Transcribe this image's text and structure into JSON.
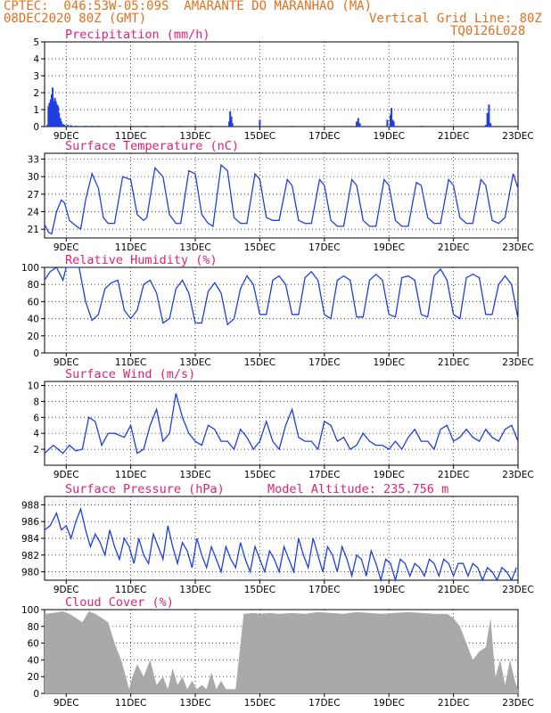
{
  "header": {
    "line1_left": "CPTEC:  046:53W-05:09S  AMARANTE DO MARANHAO (MA)",
    "line2_left": "08DEC2020 80Z (GMT)",
    "line2_right": "Vertical Grid Line: 80Z",
    "line3_right": "TQ0126L028"
  },
  "colors": {
    "series": "#1f3fe0",
    "title": "#e0207a",
    "header": "#e07020",
    "cloud": "#a9a9a9"
  },
  "x_ticks": [
    "9DEC",
    "11DEC",
    "13DEC",
    "15DEC",
    "17DEC",
    "19DEC",
    "21DEC",
    "23DEC"
  ],
  "chart_data": [
    {
      "type": "bar",
      "title": "Precipitation (mm/h)",
      "ylim": [
        0,
        5
      ],
      "yticks": [
        0,
        1,
        2,
        3,
        4,
        5
      ],
      "x_unit": "day of December (UTC)",
      "xlim": [
        8.33,
        23.0
      ],
      "x": [
        8.42,
        8.45,
        8.48,
        8.52,
        8.55,
        8.58,
        8.62,
        8.65,
        8.68,
        8.72,
        8.75,
        8.78,
        8.82,
        8.85,
        8.9,
        8.95,
        9.05,
        9.15,
        9.3,
        9.6,
        9.8,
        10.0,
        10.5,
        11.0,
        11.5,
        12.0,
        12.5,
        13.0,
        13.5,
        14.05,
        14.08,
        14.12,
        14.15,
        15.0,
        16.0,
        18.0,
        18.05,
        18.1,
        18.95,
        19.05,
        19.08,
        19.12,
        19.15,
        20.0,
        22.0,
        22.05,
        22.1,
        22.15
      ],
      "values": [
        0.1,
        1.2,
        1.4,
        1.6,
        1.9,
        2.3,
        1.5,
        1.7,
        1.5,
        1.3,
        1.2,
        0.8,
        0.5,
        0.3,
        0.15,
        0.1,
        0.1,
        0.08,
        0.05,
        0.05,
        0.05,
        0.05,
        0.05,
        0.05,
        0.05,
        0.05,
        0.05,
        0.05,
        0.05,
        0.3,
        0.9,
        0.6,
        0.2,
        0.4,
        0.05,
        0.3,
        0.5,
        0.2,
        0.4,
        0.7,
        1.1,
        0.4,
        0.3,
        0.05,
        0.1,
        0.8,
        1.3,
        0.2
      ]
    },
    {
      "type": "line",
      "title": "Surface Temperature (nC)",
      "ylim": [
        19.5,
        34
      ],
      "yticks": [
        21,
        24,
        27,
        30,
        33
      ],
      "x_unit": "day of December (UTC)",
      "xlim": [
        8.33,
        23.0
      ],
      "x": [
        8.33,
        8.45,
        8.55,
        8.7,
        8.85,
        8.95,
        9.1,
        9.25,
        9.45,
        9.6,
        9.8,
        10.0,
        10.15,
        10.3,
        10.5,
        10.75,
        11.0,
        11.2,
        11.4,
        11.5,
        11.75,
        12.0,
        12.2,
        12.4,
        12.55,
        12.8,
        13.0,
        13.2,
        13.4,
        13.55,
        13.8,
        14.0,
        14.2,
        14.4,
        14.6,
        14.85,
        15.0,
        15.2,
        15.4,
        15.6,
        15.85,
        16.0,
        16.2,
        16.4,
        16.6,
        16.85,
        17.0,
        17.2,
        17.4,
        17.6,
        17.85,
        18.0,
        18.2,
        18.4,
        18.6,
        18.85,
        19.0,
        19.2,
        19.4,
        19.6,
        19.85,
        20.0,
        20.2,
        20.4,
        20.6,
        20.85,
        21.0,
        21.2,
        21.4,
        21.6,
        21.85,
        22.0,
        22.2,
        22.4,
        22.6,
        22.85,
        23.0
      ],
      "values": [
        21.8,
        20.5,
        20.2,
        24,
        26,
        25.5,
        22.5,
        21.8,
        21,
        26,
        30.5,
        28,
        23,
        22,
        22,
        30,
        29.5,
        23.5,
        22.5,
        23,
        31.5,
        30,
        23.5,
        22,
        22,
        31,
        30.5,
        23.5,
        22,
        21.5,
        32,
        31,
        23,
        22,
        22,
        30.5,
        29.5,
        23,
        22.5,
        22.5,
        29.5,
        28.5,
        22.5,
        22,
        22,
        29.5,
        28.5,
        22.5,
        21.5,
        21.5,
        29.5,
        28.5,
        22.5,
        21.5,
        21.5,
        29.5,
        28.5,
        22.5,
        21.5,
        21.5,
        29,
        28.5,
        23,
        22,
        22,
        29.5,
        28.5,
        23,
        22,
        22,
        29.5,
        28.5,
        22.5,
        22,
        23,
        30.5,
        28
      ]
    },
    {
      "type": "line",
      "title": "Relative Humidity (%)",
      "ylim": [
        0,
        100
      ],
      "yticks": [
        0,
        20,
        40,
        60,
        80,
        100
      ],
      "x_unit": "day of December (UTC)",
      "xlim": [
        8.33,
        23.0
      ],
      "x": [
        8.33,
        8.5,
        8.7,
        8.9,
        9.0,
        9.2,
        9.4,
        9.6,
        9.8,
        10.0,
        10.2,
        10.4,
        10.6,
        10.8,
        11.0,
        11.2,
        11.4,
        11.6,
        11.8,
        12.0,
        12.2,
        12.4,
        12.6,
        12.8,
        13.0,
        13.2,
        13.4,
        13.6,
        13.8,
        14.0,
        14.2,
        14.4,
        14.6,
        14.8,
        15.0,
        15.2,
        15.4,
        15.6,
        15.8,
        16.0,
        16.2,
        16.4,
        16.6,
        16.8,
        17.0,
        17.2,
        17.4,
        17.6,
        17.8,
        18.0,
        18.2,
        18.4,
        18.6,
        18.8,
        19.0,
        19.2,
        19.4,
        19.6,
        19.8,
        20.0,
        20.2,
        20.4,
        20.6,
        20.8,
        21.0,
        21.2,
        21.4,
        21.6,
        21.8,
        22.0,
        22.2,
        22.4,
        22.6,
        22.8,
        23.0
      ],
      "values": [
        85,
        95,
        100,
        85,
        100,
        100,
        100,
        60,
        38,
        45,
        75,
        82,
        85,
        50,
        40,
        50,
        80,
        85,
        70,
        35,
        40,
        75,
        85,
        70,
        35,
        35,
        72,
        82,
        70,
        33,
        40,
        75,
        90,
        80,
        45,
        45,
        85,
        90,
        80,
        45,
        45,
        88,
        95,
        85,
        45,
        40,
        85,
        90,
        85,
        42,
        42,
        85,
        92,
        85,
        45,
        42,
        88,
        90,
        85,
        45,
        42,
        90,
        98,
        85,
        45,
        40,
        88,
        92,
        88,
        45,
        45,
        80,
        90,
        80,
        40
      ]
    },
    {
      "type": "line",
      "title": "Surface Wind (m/s)",
      "ylim": [
        0,
        10.5
      ],
      "yticks": [
        2,
        4,
        6,
        8,
        10
      ],
      "x_unit": "day of December (UTC)",
      "xlim": [
        8.33,
        23.0
      ],
      "x": [
        8.33,
        8.6,
        8.9,
        9.1,
        9.3,
        9.5,
        9.7,
        9.9,
        10.1,
        10.3,
        10.5,
        10.8,
        11.0,
        11.2,
        11.4,
        11.6,
        11.8,
        12.0,
        12.2,
        12.4,
        12.6,
        12.8,
        13.0,
        13.2,
        13.4,
        13.6,
        13.8,
        14.0,
        14.2,
        14.4,
        14.6,
        14.8,
        15.0,
        15.2,
        15.4,
        15.6,
        15.8,
        16.0,
        16.2,
        16.4,
        16.6,
        16.8,
        17.0,
        17.2,
        17.4,
        17.6,
        17.8,
        18.0,
        18.2,
        18.4,
        18.6,
        18.8,
        19.0,
        19.2,
        19.4,
        19.6,
        19.8,
        20.0,
        20.2,
        20.4,
        20.6,
        20.8,
        21.0,
        21.2,
        21.4,
        21.6,
        21.8,
        22.0,
        22.2,
        22.4,
        22.6,
        22.8,
        23.0
      ],
      "values": [
        1.5,
        2.5,
        1.5,
        2.5,
        1.8,
        2.0,
        6.0,
        5.5,
        2.5,
        4.0,
        4.0,
        3.5,
        5.0,
        1.5,
        2.0,
        5.0,
        7.0,
        3.0,
        4.0,
        9.0,
        6.0,
        4.0,
        3.0,
        2.5,
        5.0,
        4.5,
        3.0,
        3.0,
        2.0,
        4.5,
        3.5,
        2.0,
        3.0,
        5.5,
        3.0,
        2.0,
        5.0,
        7.0,
        3.5,
        3.0,
        3.0,
        2.0,
        5.5,
        5.0,
        3.0,
        3.5,
        2.0,
        2.5,
        4.0,
        3.0,
        2.5,
        2.5,
        2.0,
        3.0,
        2.0,
        3.5,
        4.5,
        3.0,
        3.0,
        2.0,
        4.5,
        5.0,
        3.0,
        3.5,
        4.5,
        3.5,
        3.0,
        4.5,
        3.5,
        3.0,
        4.5,
        5.0,
        3.0
      ]
    },
    {
      "type": "line",
      "title": "Surface Pressure (hPa)",
      "annotation": "Model Altitude: 235.756 m",
      "ylim": [
        979.0,
        989.0
      ],
      "yticks": [
        980,
        982,
        984,
        986,
        988
      ],
      "x_unit": "day of December (UTC)",
      "xlim": [
        8.33,
        23.0
      ],
      "x": [
        8.33,
        8.5,
        8.7,
        8.85,
        9.0,
        9.15,
        9.3,
        9.45,
        9.6,
        9.75,
        9.9,
        10.05,
        10.2,
        10.35,
        10.5,
        10.65,
        10.8,
        10.95,
        11.1,
        11.25,
        11.4,
        11.55,
        11.7,
        11.85,
        12.0,
        12.15,
        12.3,
        12.45,
        12.6,
        12.75,
        12.9,
        13.05,
        13.2,
        13.35,
        13.5,
        13.65,
        13.8,
        13.95,
        14.1,
        14.25,
        14.4,
        14.55,
        14.7,
        14.85,
        15.0,
        15.15,
        15.3,
        15.45,
        15.6,
        15.75,
        15.9,
        16.05,
        16.2,
        16.35,
        16.5,
        16.65,
        16.8,
        16.95,
        17.1,
        17.25,
        17.4,
        17.55,
        17.7,
        17.85,
        18.0,
        18.15,
        18.3,
        18.45,
        18.6,
        18.75,
        18.9,
        19.05,
        19.2,
        19.35,
        19.5,
        19.65,
        19.8,
        19.95,
        20.1,
        20.25,
        20.4,
        20.55,
        20.7,
        20.85,
        21.0,
        21.15,
        21.3,
        21.45,
        21.6,
        21.75,
        21.9,
        22.05,
        22.2,
        22.35,
        22.5,
        22.65,
        22.8,
        22.95
      ],
      "values": [
        985,
        985.5,
        987,
        985,
        985.5,
        984,
        986,
        987.5,
        985,
        983,
        984.5,
        983.5,
        982,
        985,
        983,
        981.5,
        984,
        983,
        981,
        984,
        982,
        981,
        984.5,
        983,
        981.5,
        985.5,
        983,
        981,
        983.5,
        982.5,
        980.5,
        984,
        982,
        980.5,
        983,
        981.5,
        980,
        983,
        981.5,
        980.5,
        983.5,
        981.5,
        980,
        983,
        981.5,
        980,
        982.5,
        981.5,
        980,
        983,
        981.5,
        980,
        984,
        982,
        980.5,
        984,
        982,
        980,
        983,
        982,
        980,
        983,
        981.5,
        979.5,
        982,
        981.5,
        979.5,
        982.5,
        981,
        979,
        981.5,
        981,
        979,
        981.5,
        981,
        979.5,
        981,
        980.5,
        979.5,
        981.5,
        981,
        979.5,
        981.5,
        981,
        979.5,
        981,
        981,
        979.5,
        981,
        980.5,
        979,
        980.5,
        980,
        979,
        980.5,
        980,
        979,
        980.5
      ]
    },
    {
      "type": "area",
      "title": "Cloud Cover (%)",
      "ylim": [
        0,
        100
      ],
      "yticks": [
        0,
        20,
        40,
        60,
        80,
        100
      ],
      "x_unit": "day of December (UTC)",
      "xlim": [
        8.33,
        23.0
      ],
      "x": [
        8.33,
        8.6,
        8.9,
        9.1,
        9.3,
        9.5,
        9.7,
        9.9,
        10.1,
        10.3,
        10.5,
        10.7,
        10.85,
        10.95,
        11.05,
        11.2,
        11.4,
        11.6,
        11.8,
        12.0,
        12.15,
        12.3,
        12.45,
        12.6,
        12.75,
        12.9,
        13.05,
        13.2,
        13.35,
        13.5,
        13.65,
        13.8,
        13.95,
        14.1,
        14.25,
        14.5,
        14.8,
        15.0,
        15.3,
        15.6,
        16.0,
        16.4,
        16.8,
        17.2,
        17.6,
        18.0,
        18.4,
        18.8,
        19.2,
        19.6,
        20.0,
        20.4,
        20.8,
        21.0,
        21.2,
        21.4,
        21.6,
        21.8,
        22.0,
        22.15,
        22.3,
        22.45,
        22.6,
        22.75,
        22.9,
        23.0
      ],
      "values": [
        95,
        96,
        98,
        95,
        90,
        85,
        98,
        95,
        90,
        85,
        60,
        40,
        20,
        5,
        20,
        35,
        20,
        40,
        10,
        20,
        5,
        30,
        10,
        20,
        5,
        15,
        5,
        10,
        5,
        25,
        5,
        15,
        5,
        5,
        5,
        95,
        96,
        95,
        96,
        95,
        96,
        95,
        97,
        96,
        95,
        97,
        96,
        95,
        96,
        97,
        96,
        95,
        95,
        90,
        80,
        60,
        40,
        50,
        55,
        90,
        20,
        40,
        10,
        40,
        15,
        5
      ]
    }
  ]
}
